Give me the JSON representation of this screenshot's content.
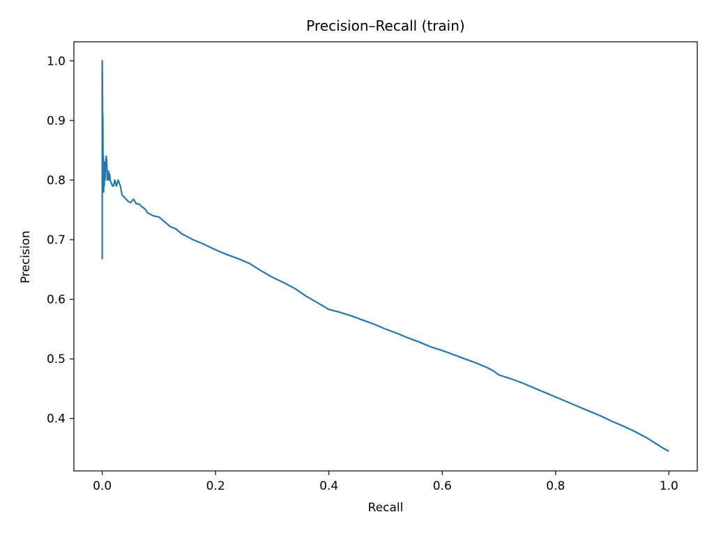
{
  "chart_data": {
    "type": "line",
    "title": "Precision–Recall (train)",
    "xlabel": "Recall",
    "ylabel": "Precision",
    "xlim": [
      -0.05,
      1.05
    ],
    "ylim": [
      0.312,
      1.032
    ],
    "xticks": [
      0.0,
      0.2,
      0.4,
      0.6,
      0.8,
      1.0
    ],
    "xtick_labels": [
      "0.0",
      "0.2",
      "0.4",
      "0.6",
      "0.8",
      "1.0"
    ],
    "yticks": [
      0.4,
      0.5,
      0.6,
      0.7,
      0.8,
      0.9,
      1.0
    ],
    "ytick_labels": [
      "0.4",
      "0.5",
      "0.6",
      "0.7",
      "0.8",
      "0.9",
      "1.0"
    ],
    "grid": false,
    "legend": "none",
    "series": [
      {
        "color": "#1f77b4",
        "x": [
          0.0,
          0.0,
          0.0005,
          0.0008,
          0.001,
          0.0013,
          0.0016,
          0.002,
          0.0025,
          0.003,
          0.0035,
          0.004,
          0.005,
          0.006,
          0.007,
          0.008,
          0.009,
          0.01,
          0.011,
          0.012,
          0.013,
          0.014,
          0.016,
          0.018,
          0.02,
          0.022,
          0.025,
          0.028,
          0.03,
          0.032,
          0.035,
          0.04,
          0.045,
          0.05,
          0.055,
          0.06,
          0.065,
          0.07,
          0.075,
          0.08,
          0.09,
          0.1,
          0.11,
          0.12,
          0.13,
          0.14,
          0.16,
          0.18,
          0.2,
          0.22,
          0.24,
          0.26,
          0.28,
          0.3,
          0.32,
          0.34,
          0.36,
          0.38,
          0.4,
          0.42,
          0.44,
          0.46,
          0.48,
          0.5,
          0.52,
          0.54,
          0.56,
          0.58,
          0.6,
          0.62,
          0.64,
          0.66,
          0.68,
          0.69,
          0.7,
          0.72,
          0.74,
          0.76,
          0.78,
          0.8,
          0.82,
          0.84,
          0.86,
          0.88,
          0.9,
          0.92,
          0.94,
          0.96,
          0.97,
          0.98,
          0.99,
          1.0
        ],
        "y": [
          0.667,
          1.0,
          0.94,
          0.82,
          0.91,
          0.86,
          0.8,
          0.84,
          0.78,
          0.82,
          0.79,
          0.83,
          0.8,
          0.83,
          0.84,
          0.83,
          0.8,
          0.81,
          0.815,
          0.8,
          0.81,
          0.8,
          0.795,
          0.79,
          0.79,
          0.8,
          0.79,
          0.8,
          0.795,
          0.79,
          0.775,
          0.77,
          0.765,
          0.762,
          0.768,
          0.76,
          0.76,
          0.755,
          0.752,
          0.745,
          0.74,
          0.738,
          0.73,
          0.722,
          0.718,
          0.71,
          0.7,
          0.692,
          0.683,
          0.675,
          0.668,
          0.66,
          0.648,
          0.637,
          0.628,
          0.618,
          0.605,
          0.594,
          0.583,
          0.578,
          0.572,
          0.565,
          0.558,
          0.55,
          0.543,
          0.535,
          0.528,
          0.52,
          0.514,
          0.507,
          0.5,
          0.493,
          0.485,
          0.48,
          0.473,
          0.467,
          0.46,
          0.452,
          0.444,
          0.436,
          0.428,
          0.42,
          0.412,
          0.404,
          0.395,
          0.387,
          0.378,
          0.368,
          0.362,
          0.356,
          0.35,
          0.345
        ]
      }
    ]
  }
}
